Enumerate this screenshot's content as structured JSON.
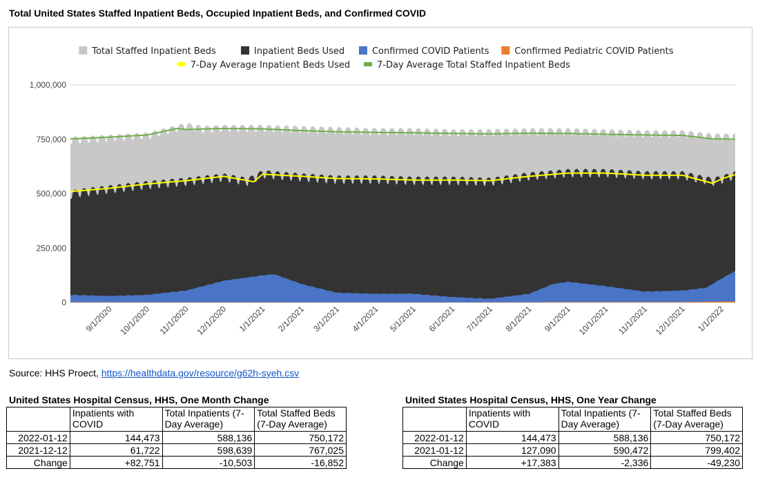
{
  "title": "Total United States Staffed Inpatient Beds, Occupied Inpatient Beds, and Confirmed COVID",
  "source": {
    "prefix": "Source: HHS Proect, ",
    "link_text": "https://healthdata.gov/resource/g62h-syeh.csv"
  },
  "chart_data": {
    "type": "area",
    "legend_position": "top",
    "y_ticks": [
      "1,000,000",
      "750,000",
      "500,000",
      "250,000",
      "0"
    ],
    "ylim": [
      0,
      1000000
    ],
    "x_ticks": [
      "9/1/2020",
      "10/1/2020",
      "11/1/2020",
      "12/1/2020",
      "1/1/2021",
      "2/1/2021",
      "3/1/2021",
      "4/1/2021",
      "5/1/2021",
      "6/1/2021",
      "7/1/2021",
      "8/1/2021",
      "9/1/2021",
      "10/1/2021",
      "11/1/2021",
      "12/1/2021",
      "1/1/2022"
    ],
    "x_range": [
      "2020-08-01",
      "2022-01-12"
    ],
    "series": [
      {
        "name": "Total Staffed Inpatient Beds",
        "kind": "area",
        "color": "#c8c8c8",
        "x": [
          "2020-08-01",
          "2020-09-01",
          "2020-10-01",
          "2020-10-25",
          "2020-11-01",
          "2020-11-15",
          "2020-12-01",
          "2021-01-01",
          "2021-02-01",
          "2021-03-01",
          "2021-04-01",
          "2021-05-01",
          "2021-06-01",
          "2021-07-01",
          "2021-08-01",
          "2021-09-01",
          "2021-10-01",
          "2021-11-01",
          "2021-12-01",
          "2021-12-25",
          "2022-01-12"
        ],
        "values": [
          750000,
          760000,
          770000,
          805000,
          815000,
          800000,
          805000,
          805000,
          800000,
          795000,
          790000,
          790000,
          785000,
          785000,
          790000,
          790000,
          785000,
          780000,
          780000,
          765000,
          765000
        ]
      },
      {
        "name": "Inpatient Beds Used",
        "kind": "area",
        "color": "#333333",
        "x": [
          "2020-08-01",
          "2020-08-10",
          "2020-09-01",
          "2020-10-01",
          "2020-11-01",
          "2020-12-01",
          "2020-12-20",
          "2021-01-01",
          "2021-02-01",
          "2021-03-01",
          "2021-04-01",
          "2021-05-01",
          "2021-06-01",
          "2021-07-01",
          "2021-08-01",
          "2021-09-01",
          "2021-10-01",
          "2021-11-01",
          "2021-12-01",
          "2021-12-25",
          "2022-01-01",
          "2022-01-12"
        ],
        "values": [
          500000,
          510000,
          525000,
          545000,
          560000,
          580000,
          560000,
          595000,
          580000,
          570000,
          570000,
          565000,
          565000,
          560000,
          585000,
          600000,
          600000,
          590000,
          590000,
          560000,
          570000,
          590000
        ]
      },
      {
        "name": "Confirmed COVID Patients",
        "kind": "area",
        "color": "#4a75c6",
        "x": [
          "2020-08-01",
          "2020-09-01",
          "2020-10-01",
          "2020-11-01",
          "2020-12-01",
          "2021-01-01",
          "2021-01-10",
          "2021-02-01",
          "2021-03-01",
          "2021-04-01",
          "2021-05-01",
          "2021-06-01",
          "2021-07-01",
          "2021-08-01",
          "2021-08-20",
          "2021-09-01",
          "2021-10-01",
          "2021-11-01",
          "2021-12-01",
          "2021-12-20",
          "2022-01-01",
          "2022-01-12"
        ],
        "values": [
          35000,
          30000,
          35000,
          55000,
          100000,
          125000,
          130000,
          85000,
          45000,
          40000,
          40000,
          25000,
          17000,
          40000,
          85000,
          95000,
          75000,
          50000,
          55000,
          68000,
          110000,
          144473
        ]
      },
      {
        "name": "Confirmed Pediatric COVID Patients",
        "kind": "area",
        "color": "#ed7d31",
        "x": [
          "2020-08-01",
          "2021-06-01",
          "2021-09-01",
          "2021-12-01",
          "2022-01-12"
        ],
        "values": [
          1500,
          800,
          2000,
          2500,
          5000
        ]
      },
      {
        "name": "7-Day Average Inpatient Beds Used",
        "kind": "line",
        "color": "#ffff00",
        "x": [
          "2020-08-01",
          "2020-09-01",
          "2020-10-01",
          "2020-11-01",
          "2020-12-01",
          "2020-12-25",
          "2021-01-01",
          "2021-02-01",
          "2021-03-01",
          "2021-04-01",
          "2021-05-01",
          "2021-06-01",
          "2021-07-01",
          "2021-08-01",
          "2021-09-01",
          "2021-10-01",
          "2021-11-01",
          "2021-12-01",
          "2021-12-25",
          "2022-01-01",
          "2022-01-12"
        ],
        "values": [
          510000,
          525000,
          545000,
          560000,
          580000,
          555000,
          590000,
          580000,
          570000,
          568000,
          563000,
          563000,
          560000,
          580000,
          595000,
          595000,
          585000,
          585000,
          548000,
          568000,
          588136
        ]
      },
      {
        "name": "7-Day Average Total Staffed Inpatient Beds",
        "kind": "line",
        "color": "#70ad47",
        "x": [
          "2020-08-01",
          "2020-09-01",
          "2020-10-01",
          "2020-10-25",
          "2020-11-01",
          "2020-12-01",
          "2021-01-01",
          "2021-02-01",
          "2021-03-01",
          "2021-04-01",
          "2021-05-01",
          "2021-06-01",
          "2021-07-01",
          "2021-08-01",
          "2021-09-01",
          "2021-10-01",
          "2021-11-01",
          "2021-12-01",
          "2021-12-25",
          "2022-01-12"
        ],
        "values": [
          752000,
          760000,
          770000,
          800000,
          795000,
          800000,
          798000,
          790000,
          785000,
          782000,
          780000,
          777000,
          775000,
          778000,
          777000,
          773000,
          770000,
          768000,
          752000,
          750172
        ]
      }
    ]
  },
  "tables": [
    {
      "title": "United States Hospital Census, HHS, One Month Change",
      "headers": [
        "",
        "Inpatients with COVID",
        "Total Inpatients (7-Day Average)",
        "Total Staffed Beds (7-Day Average)"
      ],
      "rows": [
        [
          "2022-01-12",
          "144,473",
          "588,136",
          "750,172"
        ],
        [
          "2021-12-12",
          "61,722",
          "598,639",
          "767,025"
        ],
        [
          "Change",
          "+82,751",
          "-10,503",
          "-16,852"
        ]
      ]
    },
    {
      "title": "United States Hospital Census, HHS, One Year Change",
      "headers": [
        "",
        "Inpatients with COVID",
        "Total Inpatients (7-Day Average)",
        "Total Staffed Beds (7-Day Average)"
      ],
      "rows": [
        [
          "2022-01-12",
          "144,473",
          "588,136",
          "750,172"
        ],
        [
          "2021-01-12",
          "127,090",
          "590,472",
          "799,402"
        ],
        [
          "Change",
          "+17,383",
          "-2,336",
          "-49,230"
        ]
      ]
    }
  ]
}
